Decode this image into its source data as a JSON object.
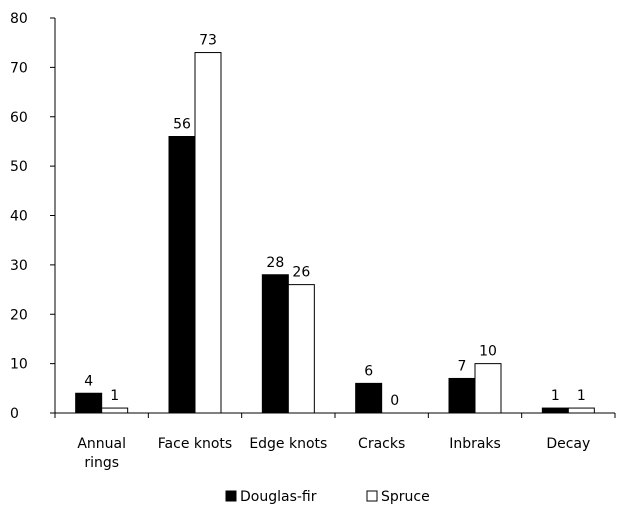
{
  "chart_data": {
    "type": "bar",
    "title": "",
    "xlabel": "",
    "ylabel": "",
    "ylim": [
      0,
      80
    ],
    "yticks": [
      0,
      10,
      20,
      30,
      40,
      50,
      60,
      70,
      80
    ],
    "grid": false,
    "legend_position": "bottom",
    "categories": [
      [
        "Annual",
        "rings"
      ],
      [
        "Face knots"
      ],
      [
        "Edge knots"
      ],
      [
        "Cracks"
      ],
      [
        "Inbraks"
      ],
      [
        "Decay"
      ]
    ],
    "series": [
      {
        "name": "Douglas-fir",
        "values": [
          4,
          56,
          28,
          6,
          7,
          1
        ],
        "fill": "#000000"
      },
      {
        "name": "Spruce",
        "values": [
          1,
          73,
          26,
          0,
          10,
          1
        ],
        "fill": "#ffffff"
      }
    ]
  }
}
